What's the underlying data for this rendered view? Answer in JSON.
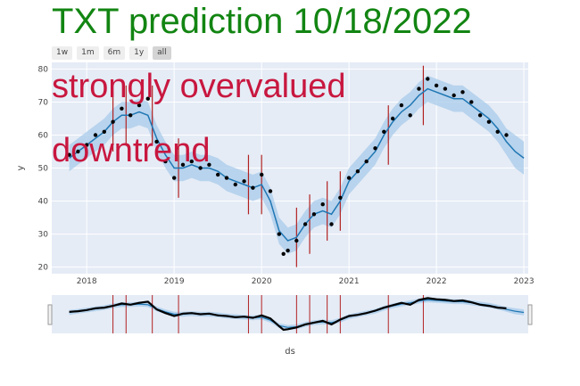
{
  "title": "TXT prediction 10/18/2022",
  "range_buttons": [
    "1w",
    "1m",
    "6m",
    "1y",
    "all"
  ],
  "active_range": "all",
  "annotations": [
    "strongly overvalued",
    "downtrend"
  ],
  "colors": {
    "title": "#128512",
    "annotation": "#c8173f",
    "plot_bg": "#e5ecf6",
    "forecast_line": "#1f77b4",
    "uncertainty_band": "#a8cbe9",
    "observed": "#000000",
    "changepoints": "#b22222"
  },
  "chart_data": {
    "type": "line",
    "title": "TXT prediction 10/18/2022",
    "xlabel": "",
    "ylabel": "y",
    "rangeslider_xlabel": "ds",
    "xlim": [
      2017.6,
      2023.05
    ],
    "ylim": [
      18,
      82
    ],
    "x_ticks": [
      2018,
      2019,
      2020,
      2021,
      2022,
      2023
    ],
    "x_tick_labels": [
      "2018",
      "2019",
      "2020",
      "2021",
      "2022",
      "2023"
    ],
    "y_ticks": [
      20,
      30,
      40,
      50,
      60,
      70,
      80
    ],
    "y_tick_labels": [
      "20",
      "30",
      "40",
      "50",
      "60",
      "70",
      "80"
    ],
    "grid": true,
    "legend": "none",
    "series": [
      {
        "kind": "observed-points",
        "x": [
          2017.8,
          2017.9,
          2018.0,
          2018.1,
          2018.2,
          2018.3,
          2018.4,
          2018.5,
          2018.6,
          2018.7,
          2018.8,
          2018.9,
          2019.0,
          2019.1,
          2019.2,
          2019.3,
          2019.4,
          2019.5,
          2019.6,
          2019.7,
          2019.8,
          2019.9,
          2020.0,
          2020.1,
          2020.2,
          2020.25,
          2020.3,
          2020.4,
          2020.5,
          2020.6,
          2020.7,
          2020.8,
          2020.9,
          2021.0,
          2021.1,
          2021.2,
          2021.3,
          2021.4,
          2021.5,
          2021.6,
          2021.7,
          2021.8,
          2021.9,
          2022.0,
          2022.1,
          2022.2,
          2022.3,
          2022.4,
          2022.5,
          2022.6,
          2022.7,
          2022.8
        ],
        "y": [
          54,
          55,
          57,
          60,
          61,
          64,
          68,
          66,
          69,
          71,
          58,
          52,
          47,
          51,
          52,
          50,
          51,
          48,
          47,
          45,
          46,
          44,
          48,
          43,
          30,
          24,
          25,
          28,
          33,
          36,
          39,
          33,
          41,
          47,
          49,
          52,
          56,
          61,
          65,
          69,
          66,
          74,
          77,
          75,
          74,
          72,
          73,
          70,
          66,
          64,
          61,
          60
        ]
      },
      {
        "kind": "forecast-line",
        "x": [
          2017.8,
          2017.9,
          2018.0,
          2018.1,
          2018.2,
          2018.3,
          2018.4,
          2018.5,
          2018.6,
          2018.7,
          2018.8,
          2018.9,
          2019.0,
          2019.1,
          2019.2,
          2019.3,
          2019.4,
          2019.5,
          2019.6,
          2019.7,
          2019.8,
          2019.9,
          2020.0,
          2020.1,
          2020.2,
          2020.3,
          2020.4,
          2020.5,
          2020.6,
          2020.7,
          2020.8,
          2020.9,
          2021.0,
          2021.1,
          2021.2,
          2021.3,
          2021.4,
          2021.5,
          2021.6,
          2021.7,
          2021.8,
          2021.9,
          2022.0,
          2022.1,
          2022.2,
          2022.3,
          2022.4,
          2022.5,
          2022.6,
          2022.7,
          2022.8,
          2022.9,
          2023.0
        ],
        "y": [
          53,
          55,
          57,
          59,
          61,
          64,
          66,
          66,
          67,
          66,
          59,
          54,
          50,
          50,
          51,
          50,
          50,
          49,
          47,
          46,
          45,
          44,
          45,
          40,
          31,
          28,
          29,
          33,
          36,
          37,
          36,
          40,
          46,
          49,
          52,
          55,
          60,
          64,
          67,
          69,
          72,
          74,
          73,
          72,
          71,
          71,
          69,
          67,
          65,
          62,
          58,
          55,
          53
        ],
        "upper": [
          57,
          59,
          61,
          63,
          65,
          68,
          70,
          70,
          71,
          70,
          63,
          58,
          54,
          54,
          55,
          54,
          54,
          53,
          51,
          50,
          49,
          48,
          49,
          44,
          35,
          32,
          33,
          37,
          40,
          41,
          40,
          44,
          50,
          53,
          56,
          59,
          64,
          68,
          71,
          73,
          76,
          78,
          77,
          76,
          75,
          75,
          73,
          71,
          69,
          66,
          62,
          60,
          58
        ],
        "lower": [
          49,
          51,
          53,
          55,
          57,
          60,
          62,
          62,
          63,
          62,
          55,
          50,
          46,
          46,
          47,
          46,
          46,
          45,
          43,
          42,
          41,
          40,
          41,
          36,
          27,
          24,
          25,
          29,
          32,
          33,
          32,
          36,
          42,
          45,
          48,
          51,
          56,
          60,
          63,
          65,
          68,
          70,
          69,
          68,
          67,
          67,
          65,
          63,
          61,
          58,
          54,
          50,
          48
        ]
      }
    ],
    "changepoints": [
      2018.3,
      2018.45,
      2018.75,
      2019.05,
      2019.85,
      2020.0,
      2020.4,
      2020.55,
      2020.75,
      2020.9,
      2021.45,
      2021.85
    ]
  }
}
